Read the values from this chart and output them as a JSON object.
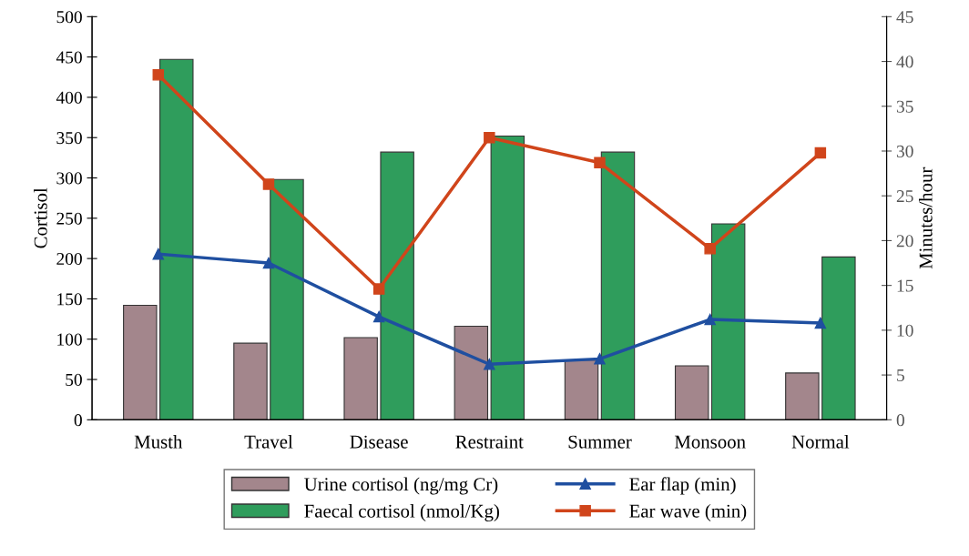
{
  "chart_data": {
    "type": "bar",
    "ylabel": "Cortisol",
    "y2label": "Minutes/hour",
    "categories": [
      "Musth",
      "Travel",
      "Disease",
      "Restraint",
      "Summer",
      "Monsoon",
      "Normal"
    ],
    "series": [
      {
        "name": "Urine cortisol (ng/mg Cr)",
        "color": "#a3868c",
        "values": [
          142,
          95,
          102,
          116,
          74,
          67,
          58
        ]
      },
      {
        "name": "Faecal cortisol (nmol/Kg)",
        "color": "#2f9d5c",
        "values": [
          447,
          298,
          332,
          352,
          332,
          243,
          202
        ]
      },
      {
        "name": "Ear flap (min)",
        "type": "line",
        "axis": "y2",
        "marker": "triangle",
        "color": "#1f4fa0",
        "values": [
          18.5,
          17.5,
          11.5,
          6.2,
          6.8,
          11.2,
          10.8
        ]
      },
      {
        "name": "Ear wave (min)",
        "type": "line",
        "axis": "y2",
        "marker": "square",
        "color": "#d0451b",
        "values": [
          38.5,
          26.3,
          14.6,
          31.5,
          28.7,
          19.1,
          29.8
        ]
      }
    ],
    "ylim": [
      0,
      500
    ],
    "yticks": [
      0,
      50,
      100,
      150,
      200,
      250,
      300,
      350,
      400,
      450,
      500
    ],
    "y2lim": [
      0,
      45
    ],
    "y2ticks": [
      0,
      5,
      10,
      15,
      20,
      25,
      30,
      35,
      40,
      45
    ],
    "grid": false,
    "legend": "bottom"
  }
}
